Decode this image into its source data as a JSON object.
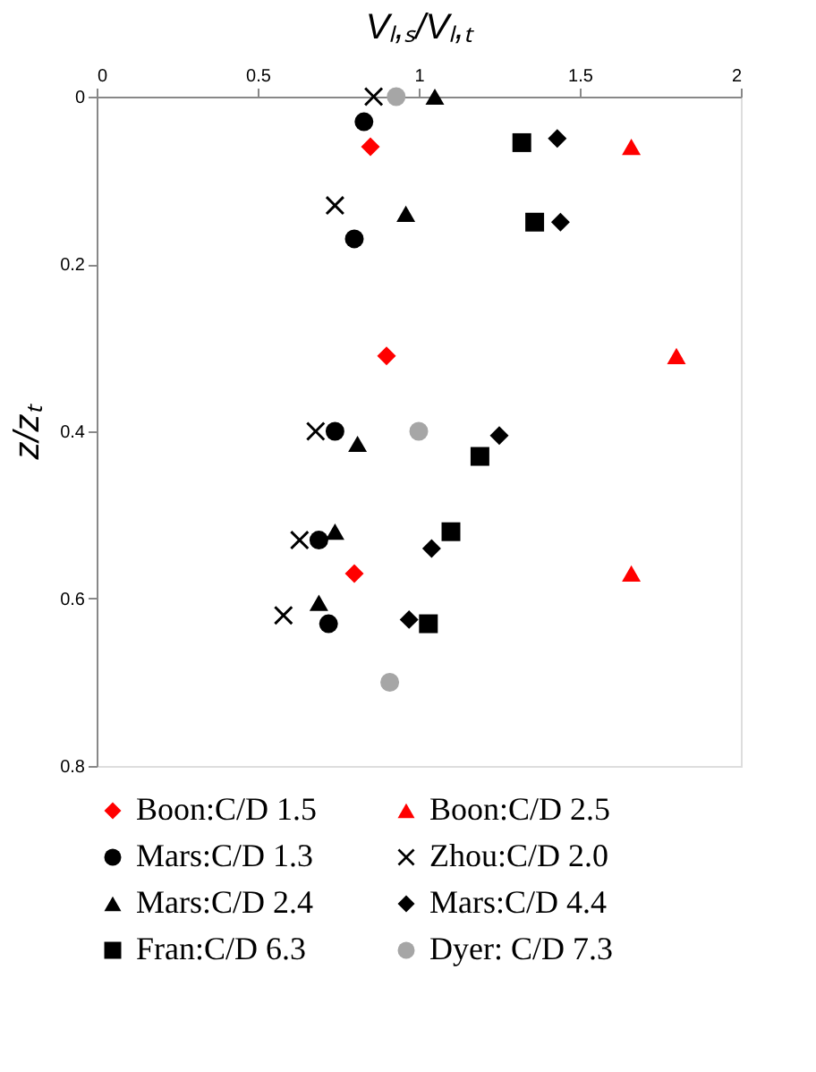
{
  "chart_data": {
    "type": "scatter",
    "xlabel": "Vₗ,ₛ/Vₗ,ₜ",
    "ylabel": "z/zₜ",
    "xlim": [
      0,
      2
    ],
    "xticks": [
      0,
      0.5,
      1,
      1.5,
      2
    ],
    "ylim": [
      0.8,
      0
    ],
    "yticks": [
      0,
      0.2,
      0.4,
      0.6,
      0.8
    ],
    "grid": false,
    "legend": "bottom",
    "series": [
      {
        "name": "Boon:C/D 1.5",
        "color": "#ff0000",
        "marker": "diamond",
        "x": [
          0.85,
          0.9,
          0.8
        ],
        "values": [
          0.06,
          0.31,
          0.57
        ]
      },
      {
        "name": "Boon:C/D 2.5",
        "color": "#ff0000",
        "marker": "triangle",
        "x": [
          1.66,
          1.8,
          1.66
        ],
        "values": [
          0.06,
          0.31,
          0.57
        ]
      },
      {
        "name": "Mars:C/D 1.3",
        "color": "#000000",
        "marker": "circle",
        "x": [
          0.83,
          0.8,
          0.74,
          0.69,
          0.72
        ],
        "values": [
          0.03,
          0.17,
          0.4,
          0.53,
          0.63
        ]
      },
      {
        "name": "Zhou:C/D 2.0",
        "color": "#000000",
        "marker": "cross",
        "x": [
          0.86,
          0.74,
          0.68,
          0.63,
          0.58
        ],
        "values": [
          0,
          0.13,
          0.4,
          0.53,
          0.62
        ]
      },
      {
        "name": "Mars:C/D 2.4",
        "color": "#000000",
        "marker": "triangle",
        "x": [
          1.05,
          0.96,
          0.81,
          0.74,
          0.69
        ],
        "values": [
          0,
          0.14,
          0.415,
          0.52,
          0.605
        ]
      },
      {
        "name": "Mars:C/D 4.4",
        "color": "#000000",
        "marker": "diamond",
        "x": [
          1.43,
          1.44,
          1.25,
          1.04,
          0.97
        ],
        "values": [
          0.05,
          0.15,
          0.405,
          0.54,
          0.625
        ]
      },
      {
        "name": "Fran:C/D 6.3",
        "color": "#000000",
        "marker": "square",
        "x": [
          1.32,
          1.36,
          1.19,
          1.1,
          1.03
        ],
        "values": [
          0.055,
          0.15,
          0.43,
          0.52,
          0.63
        ]
      },
      {
        "name": "Dyer: C/D 7.3",
        "color": "#a6a6a6",
        "marker": "circle",
        "x": [
          0.93,
          1.0,
          0.91
        ],
        "values": [
          0,
          0.4,
          0.7
        ]
      }
    ]
  }
}
